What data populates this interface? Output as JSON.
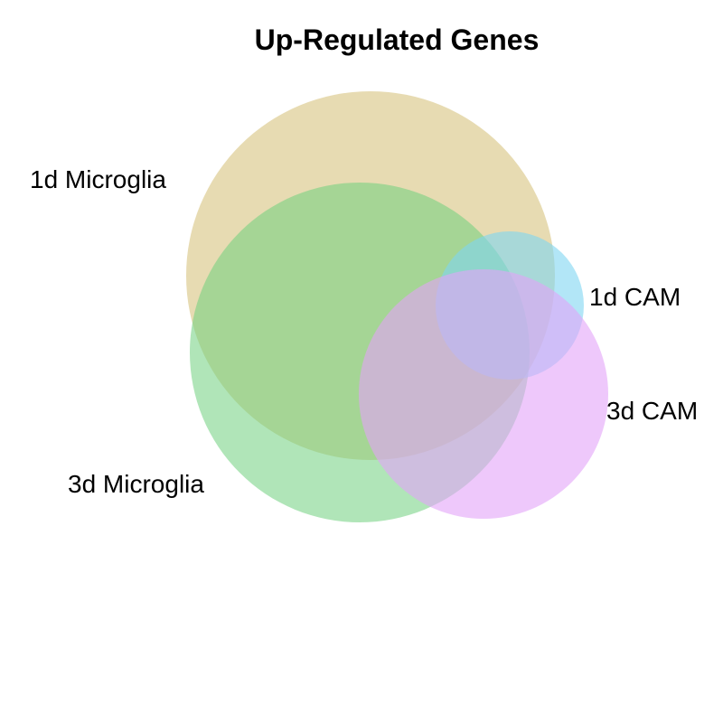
{
  "title": "Up-Regulated Genes",
  "sets": [
    {
      "key": "microglia_1d",
      "label": "1d Microglia",
      "color": "#D4BE72",
      "opacity": 0.55
    },
    {
      "key": "microglia_3d",
      "label": "3d Microglia",
      "color": "#6FD07E",
      "opacity": 0.55
    },
    {
      "key": "cam_1d",
      "label": "1d CAM",
      "color": "#7FD6F2",
      "opacity": 0.6
    },
    {
      "key": "cam_3d",
      "label": "3d CAM",
      "color": "#E3A3F8",
      "opacity": 0.6
    }
  ]
}
